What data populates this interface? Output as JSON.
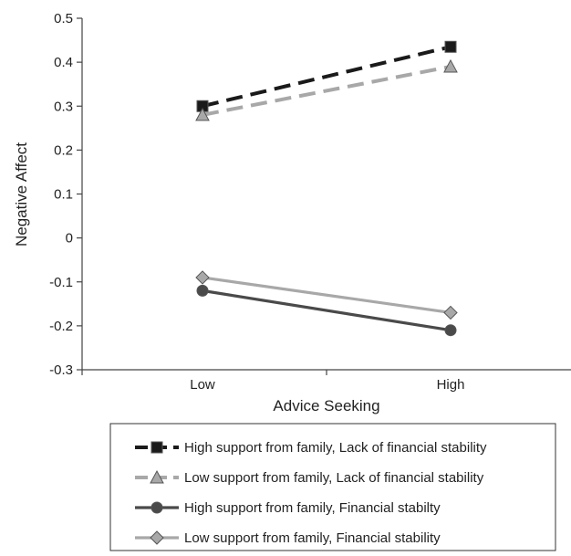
{
  "chart_data": {
    "type": "line",
    "title": "",
    "xlabel": "Advice Seeking",
    "ylabel": "Negative Affect",
    "categories": [
      "Low",
      "High"
    ],
    "ylim": [
      -0.3,
      0.5
    ],
    "yticks": [
      -0.3,
      -0.2,
      -0.1,
      0,
      0.1,
      0.2,
      0.3,
      0.4,
      0.5
    ],
    "ytick_labels": [
      "-0.3",
      "-0.2",
      "-0.1",
      "0",
      "0.1",
      "0.2",
      "0.3",
      "0.4",
      "0.5"
    ],
    "grid": false,
    "legend_position": "bottom",
    "series": [
      {
        "name": "High support from family, Lack of financial stability",
        "values": [
          0.3,
          0.435
        ],
        "color": "#1a1a1a",
        "dashed": true,
        "marker": "square"
      },
      {
        "name": "Low support from family, Lack of financial stability",
        "values": [
          0.28,
          0.39
        ],
        "color": "#a8a8a8",
        "dashed": true,
        "marker": "triangle"
      },
      {
        "name": "High support from family, Financial stabilty",
        "values": [
          -0.12,
          -0.21
        ],
        "color": "#4a4a4a",
        "dashed": false,
        "marker": "circle"
      },
      {
        "name": "Low support from family, Financial stability",
        "values": [
          -0.09,
          -0.17
        ],
        "color": "#a8a8a8",
        "dashed": false,
        "marker": "diamond"
      }
    ]
  }
}
